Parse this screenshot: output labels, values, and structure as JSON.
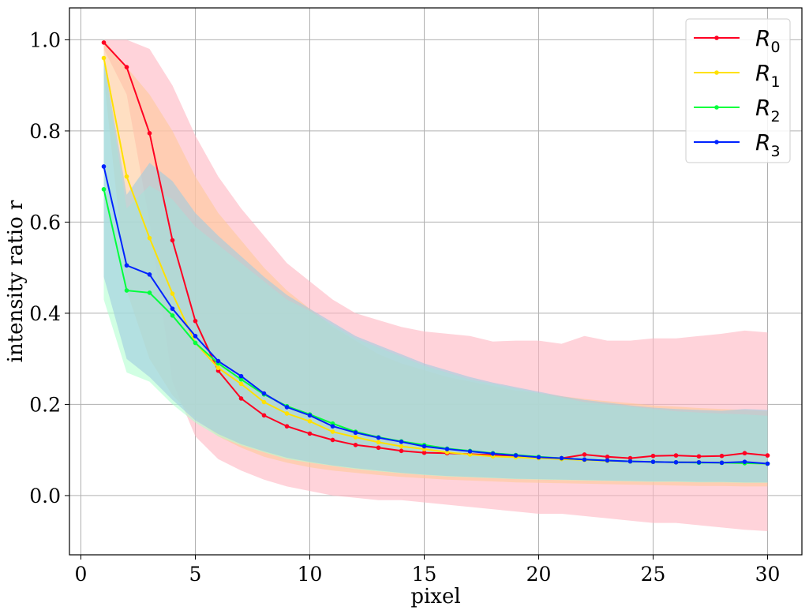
{
  "chart_data": {
    "type": "line",
    "title": "",
    "xlabel": "pixel",
    "ylabel": "intensity ratio r",
    "xlim": [
      -0.5,
      31.5
    ],
    "ylim": [
      -0.13,
      1.07
    ],
    "xticks": [
      0,
      5,
      10,
      15,
      20,
      25,
      30
    ],
    "yticks": [
      0.0,
      0.2,
      0.4,
      0.6,
      0.8,
      1.0
    ],
    "xtick_labels": [
      "0",
      "5",
      "10",
      "15",
      "20",
      "25",
      "30"
    ],
    "ytick_labels": [
      "0.0",
      "0.2",
      "0.4",
      "0.6",
      "0.8",
      "1.0"
    ],
    "grid": true,
    "legend_position": "top-right",
    "x": [
      1,
      2,
      3,
      4,
      5,
      6,
      7,
      8,
      9,
      10,
      11,
      12,
      13,
      14,
      15,
      16,
      17,
      18,
      19,
      20,
      21,
      22,
      23,
      24,
      25,
      26,
      27,
      28,
      29,
      30
    ],
    "series": [
      {
        "name": "R",
        "subscript": "0",
        "color": "#ff0022",
        "band_color": "#ffb6c1",
        "values": [
          0.994,
          0.94,
          0.795,
          0.56,
          0.383,
          0.274,
          0.213,
          0.176,
          0.152,
          0.136,
          0.122,
          0.111,
          0.105,
          0.098,
          0.094,
          0.093,
          0.091,
          0.089,
          0.086,
          0.083,
          0.082,
          0.09,
          0.085,
          0.082,
          0.087,
          0.088,
          0.086,
          0.087,
          0.093,
          0.088
        ],
        "upper": [
          1.0,
          1.0,
          0.98,
          0.9,
          0.79,
          0.7,
          0.63,
          0.57,
          0.51,
          0.47,
          0.43,
          0.4,
          0.385,
          0.37,
          0.36,
          0.355,
          0.35,
          0.338,
          0.34,
          0.34,
          0.333,
          0.35,
          0.34,
          0.34,
          0.345,
          0.345,
          0.35,
          0.355,
          0.362,
          0.358
        ],
        "lower": [
          0.98,
          0.88,
          0.6,
          0.25,
          0.13,
          0.08,
          0.055,
          0.035,
          0.02,
          0.01,
          0.0,
          -0.005,
          -0.01,
          -0.01,
          -0.015,
          -0.02,
          -0.025,
          -0.03,
          -0.035,
          -0.04,
          -0.04,
          -0.045,
          -0.05,
          -0.055,
          -0.06,
          -0.06,
          -0.065,
          -0.07,
          -0.075,
          -0.078
        ]
      },
      {
        "name": "R",
        "subscript": "1",
        "color": "#ffe100",
        "band_color": "#ffc99a",
        "values": [
          0.96,
          0.7,
          0.565,
          0.443,
          0.335,
          0.28,
          0.245,
          0.205,
          0.18,
          0.163,
          0.14,
          0.128,
          0.117,
          0.108,
          0.102,
          0.095,
          0.09,
          0.086,
          0.084,
          0.082,
          0.08,
          0.078,
          0.076,
          0.075,
          0.074,
          0.073,
          0.073,
          0.072,
          0.071,
          0.07
        ],
        "upper": [
          1.0,
          0.94,
          0.88,
          0.8,
          0.7,
          0.62,
          0.56,
          0.5,
          0.45,
          0.41,
          0.37,
          0.34,
          0.31,
          0.29,
          0.275,
          0.26,
          0.25,
          0.24,
          0.23,
          0.225,
          0.218,
          0.212,
          0.207,
          0.203,
          0.198,
          0.195,
          0.192,
          0.19,
          0.188,
          0.185
        ],
        "lower": [
          0.92,
          0.45,
          0.3,
          0.22,
          0.17,
          0.13,
          0.105,
          0.085,
          0.072,
          0.062,
          0.055,
          0.05,
          0.045,
          0.041,
          0.038,
          0.035,
          0.033,
          0.031,
          0.029,
          0.028,
          0.027,
          0.026,
          0.025,
          0.024,
          0.023,
          0.022,
          0.021,
          0.021,
          0.02,
          0.02
        ]
      },
      {
        "name": "R",
        "subscript": "2",
        "color": "#00ff3c",
        "band_color": "#b3ffd0",
        "values": [
          0.672,
          0.45,
          0.445,
          0.395,
          0.335,
          0.29,
          0.255,
          0.222,
          0.196,
          0.178,
          0.158,
          0.14,
          0.128,
          0.119,
          0.111,
          0.103,
          0.098,
          0.093,
          0.089,
          0.085,
          0.082,
          0.079,
          0.077,
          0.075,
          0.074,
          0.073,
          0.072,
          0.072,
          0.071,
          0.07
        ],
        "upper": [
          0.95,
          0.63,
          0.68,
          0.65,
          0.59,
          0.55,
          0.51,
          0.47,
          0.43,
          0.405,
          0.375,
          0.345,
          0.325,
          0.305,
          0.285,
          0.27,
          0.255,
          0.245,
          0.235,
          0.225,
          0.215,
          0.205,
          0.2,
          0.195,
          0.19,
          0.185,
          0.182,
          0.18,
          0.178,
          0.175
        ],
        "lower": [
          0.43,
          0.27,
          0.25,
          0.2,
          0.16,
          0.13,
          0.11,
          0.095,
          0.08,
          0.072,
          0.065,
          0.058,
          0.053,
          0.049,
          0.045,
          0.042,
          0.04,
          0.038,
          0.036,
          0.035,
          0.034,
          0.033,
          0.032,
          0.031,
          0.03,
          0.03,
          0.029,
          0.029,
          0.028,
          0.028
        ]
      },
      {
        "name": "R",
        "subscript": "3",
        "color": "#0022ff",
        "band_color": "#9ecbe0",
        "values": [
          0.722,
          0.505,
          0.485,
          0.41,
          0.35,
          0.295,
          0.262,
          0.224,
          0.194,
          0.176,
          0.152,
          0.138,
          0.127,
          0.118,
          0.108,
          0.102,
          0.097,
          0.092,
          0.088,
          0.084,
          0.082,
          0.079,
          0.077,
          0.075,
          0.074,
          0.073,
          0.073,
          0.072,
          0.074,
          0.07
        ],
        "upper": [
          0.96,
          0.66,
          0.73,
          0.69,
          0.62,
          0.57,
          0.525,
          0.48,
          0.44,
          0.41,
          0.38,
          0.35,
          0.33,
          0.31,
          0.29,
          0.275,
          0.26,
          0.248,
          0.238,
          0.228,
          0.218,
          0.21,
          0.204,
          0.198,
          0.193,
          0.19,
          0.188,
          0.186,
          0.19,
          0.188
        ],
        "lower": [
          0.48,
          0.3,
          0.26,
          0.21,
          0.165,
          0.135,
          0.113,
          0.097,
          0.083,
          0.074,
          0.066,
          0.06,
          0.055,
          0.05,
          0.046,
          0.043,
          0.041,
          0.039,
          0.037,
          0.036,
          0.035,
          0.034,
          0.033,
          0.032,
          0.031,
          0.031,
          0.03,
          0.03,
          0.029,
          0.029
        ]
      }
    ]
  }
}
